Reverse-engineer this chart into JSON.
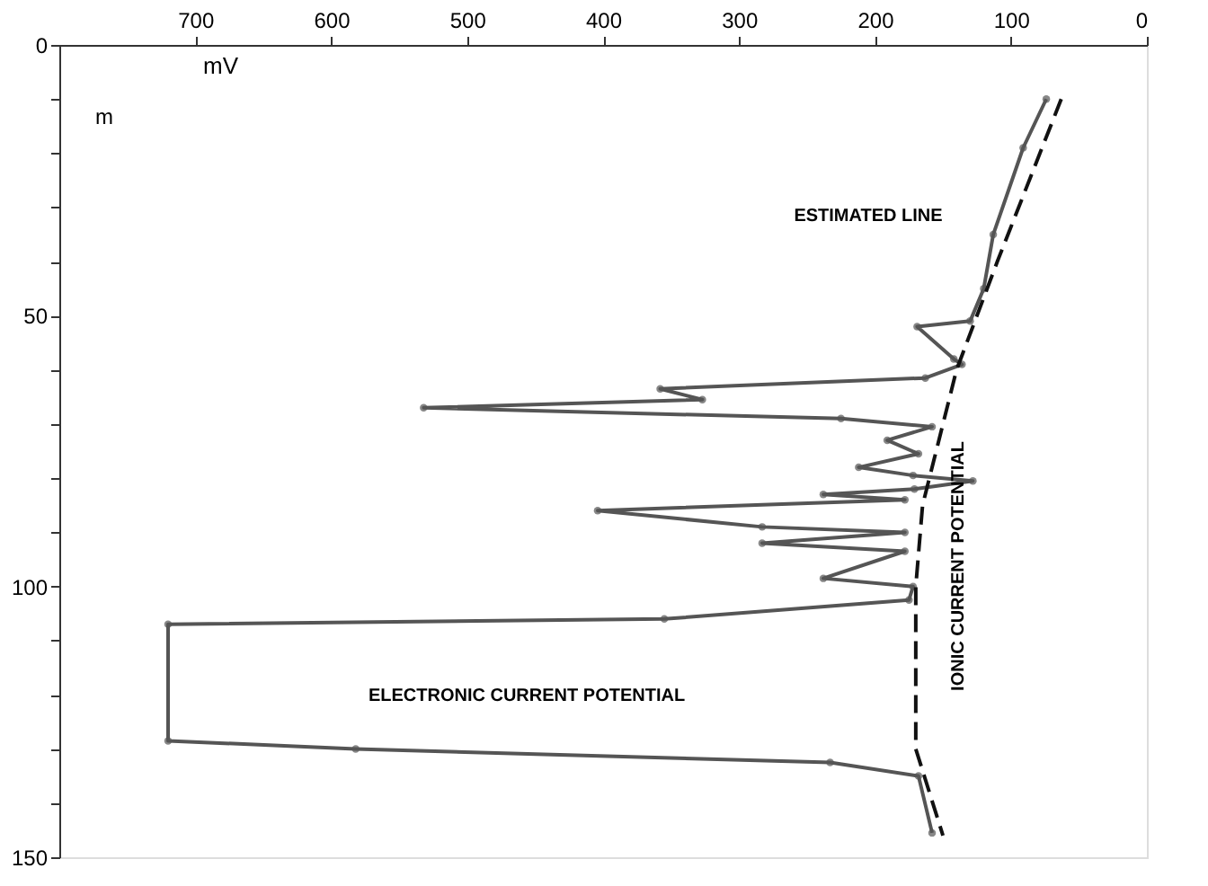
{
  "chart_data": {
    "type": "line",
    "xlabel": "mV",
    "ylabel": "m",
    "xlim": [
      800,
      0
    ],
    "ylim": [
      150,
      0
    ],
    "xticks": [
      700,
      600,
      500,
      400,
      300,
      200,
      100,
      0
    ],
    "yticks": [
      0,
      {
        "value": 10,
        "label": null
      },
      {
        "value": 20,
        "label": null
      },
      {
        "value": 30,
        "label": null
      },
      {
        "value": 40,
        "label": null
      },
      50,
      {
        "value": 60,
        "label": null
      },
      {
        "value": 70,
        "label": null
      },
      {
        "value": 80,
        "label": null
      },
      {
        "value": 90,
        "label": null
      },
      100,
      {
        "value": 110,
        "label": null
      },
      {
        "value": 120,
        "label": null
      },
      {
        "value": 130,
        "label": null
      },
      {
        "value": 140,
        "label": null
      },
      150
    ],
    "grid": false,
    "series": [
      {
        "color": "#555555",
        "marker": "circle",
        "line_style": "solid",
        "x": [
          74,
          91,
          113,
          120,
          130,
          169,
          142,
          136,
          163,
          358,
          327,
          532,
          225,
          158,
          191,
          168,
          212,
          172,
          128,
          171,
          238,
          178,
          404,
          283,
          178,
          283,
          178,
          238,
          172,
          175,
          355,
          720,
          720,
          582,
          233,
          168,
          158
        ],
        "values": [
          10,
          19,
          35,
          45,
          51,
          52,
          58,
          59,
          61.5,
          63.5,
          65.5,
          67,
          69,
          70.5,
          73,
          75.5,
          78,
          79.5,
          80.5,
          82,
          83,
          84,
          86,
          89,
          90,
          92,
          93.5,
          98.5,
          100,
          102.5,
          106,
          107,
          128.5,
          130,
          132.5,
          135,
          145.5
        ]
      },
      {
        "color": "#111111",
        "marker": "none",
        "line_style": "dashed",
        "x": [
          63,
          110,
          140,
          165,
          170,
          170,
          150
        ],
        "values": [
          10,
          40,
          60,
          85,
          100,
          130,
          146
        ]
      }
    ],
    "annotations": [
      "ESTIMATED LINE",
      "ELECTRONIC CURRENT POTENTIAL",
      "IONIC CURRENT POTENTIAL"
    ]
  }
}
